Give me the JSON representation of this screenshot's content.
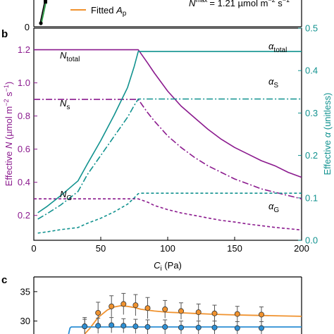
{
  "panel_letters": {
    "b": "b",
    "c": "c"
  },
  "panel_a": {
    "legend_fitted_prefix": "Fitted ",
    "legend_fitted_var": "A",
    "legend_fitted_sub": "p",
    "annotation_var": "N",
    "annotation_sup": "max",
    "annotation_eq": "= 1.21 µmol m",
    "annotation_exp1": "−2",
    "annotation_unit": " s",
    "annotation_exp2": "−1",
    "colors": {
      "fitted": "#f0922e",
      "black": "#000000",
      "green": "#1f9a3a"
    }
  },
  "chart_data": [
    {
      "type": "line",
      "x_label": {
        "var": "C",
        "sub": "i",
        "unit": " (Pa)"
      },
      "xlim": [
        0,
        200
      ],
      "x_ticks": [
        "0",
        "50",
        "100",
        "150",
        "200"
      ],
      "y_left_label": {
        "main": "Effective ",
        "var": "N",
        "unit": " (µmol m",
        "exp1": "−2",
        "mid": " s",
        "exp2": "−1",
        "end": ")"
      },
      "y_left_lim": [
        0.05,
        1.33
      ],
      "y_left_ticks": [
        "0.2",
        "0.4",
        "0.6",
        "0.8",
        "1.0",
        "1.2"
      ],
      "y_right_label": {
        "main": "Effective ",
        "var": "α",
        "unit": " (unitless)"
      },
      "y_right_lim": [
        0.0,
        0.5
      ],
      "y_right_ticks": [
        "0.0",
        "0.1",
        "0.2",
        "0.3",
        "0.4",
        "0.5"
      ],
      "colors": {
        "purple": "#8b1a8e",
        "teal": "#11928f"
      },
      "series": [
        {
          "name": "N_total",
          "axis": "left",
          "style": "solid",
          "color": "#8b1a8e",
          "x": [
            0,
            5,
            10,
            20,
            30,
            40,
            50,
            60,
            70,
            78,
            85,
            90,
            100,
            110,
            120,
            130,
            140,
            150,
            160,
            170,
            180,
            190,
            200
          ],
          "y": [
            1.2,
            1.2,
            1.2,
            1.2,
            1.2,
            1.2,
            1.2,
            1.2,
            1.2,
            1.2,
            1.12,
            1.06,
            0.95,
            0.86,
            0.79,
            0.72,
            0.66,
            0.61,
            0.57,
            0.53,
            0.5,
            0.46,
            0.43
          ]
        },
        {
          "name": "N_s",
          "axis": "left",
          "style": "dashdot",
          "color": "#8b1a8e",
          "x": [
            0,
            5,
            10,
            20,
            30,
            40,
            50,
            60,
            70,
            78,
            85,
            90,
            100,
            110,
            120,
            130,
            140,
            150,
            160,
            170,
            180,
            190,
            200
          ],
          "y": [
            0.9,
            0.9,
            0.9,
            0.9,
            0.9,
            0.9,
            0.9,
            0.9,
            0.9,
            0.9,
            0.82,
            0.77,
            0.68,
            0.61,
            0.55,
            0.5,
            0.46,
            0.42,
            0.39,
            0.36,
            0.34,
            0.32,
            0.3
          ]
        },
        {
          "name": "N_G",
          "axis": "left",
          "style": "dashed",
          "color": "#8b1a8e",
          "x": [
            0,
            5,
            10,
            20,
            30,
            40,
            50,
            60,
            70,
            78,
            85,
            90,
            100,
            110,
            120,
            130,
            140,
            150,
            160,
            170,
            180,
            190,
            200
          ],
          "y": [
            0.3,
            0.3,
            0.3,
            0.3,
            0.3,
            0.3,
            0.3,
            0.3,
            0.3,
            0.3,
            0.28,
            0.26,
            0.235,
            0.215,
            0.2,
            0.185,
            0.17,
            0.16,
            0.148,
            0.138,
            0.128,
            0.12,
            0.112
          ]
        },
        {
          "name": "alpha_total",
          "axis": "right",
          "style": "solid",
          "color": "#11928f",
          "x": [
            3,
            10,
            20,
            33,
            40,
            50,
            60,
            70,
            75,
            78,
            80,
            100,
            150,
            200
          ],
          "y": [
            0.065,
            0.08,
            0.105,
            0.14,
            0.18,
            0.235,
            0.295,
            0.36,
            0.41,
            0.445,
            0.445,
            0.445,
            0.445,
            0.445
          ]
        },
        {
          "name": "alpha_S",
          "axis": "right",
          "style": "dashdot",
          "color": "#11928f",
          "x": [
            3,
            10,
            20,
            33,
            40,
            50,
            60,
            70,
            75,
            78,
            80,
            100,
            150,
            200
          ],
          "y": [
            0.05,
            0.063,
            0.083,
            0.115,
            0.155,
            0.2,
            0.245,
            0.29,
            0.318,
            0.333,
            0.333,
            0.333,
            0.333,
            0.333
          ]
        },
        {
          "name": "alpha_G",
          "axis": "right",
          "style": "dashed",
          "color": "#11928f",
          "x": [
            3,
            10,
            20,
            33,
            40,
            50,
            60,
            70,
            75,
            78,
            80,
            100,
            150,
            200
          ],
          "y": [
            0.017,
            0.02,
            0.025,
            0.03,
            0.04,
            0.052,
            0.067,
            0.085,
            0.1,
            0.11,
            0.111,
            0.111,
            0.111,
            0.111
          ]
        }
      ],
      "labels": {
        "N_total": {
          "var": "N",
          "sub": "total"
        },
        "N_s": {
          "var": "N",
          "sub": "s"
        },
        "N_G": {
          "var": "N",
          "sub": "G"
        },
        "alpha_total": {
          "var": "α",
          "sub": "total"
        },
        "alpha_S": {
          "var": "α",
          "sub": "S"
        },
        "alpha_G": {
          "var": "α",
          "sub": "G"
        }
      }
    },
    {
      "type": "line",
      "y_ticks": [
        "30",
        "35"
      ],
      "ylim": [
        27.8,
        37.5
      ],
      "xlim": [
        0,
        200
      ],
      "colors": {
        "orange": "#f0922e",
        "blue": "#2d8fd4"
      },
      "series": [
        {
          "name": "orange_fit",
          "style": "solid",
          "color": "#f0922e",
          "x": [
            38,
            42,
            48,
            55,
            60,
            65,
            70,
            75,
            80,
            90,
            100,
            110,
            120,
            130,
            140,
            150,
            160,
            170,
            180,
            190,
            200
          ],
          "y": [
            27.8,
            28.8,
            30.6,
            31.9,
            32.4,
            32.6,
            32.5,
            32.3,
            32.0,
            31.7,
            31.5,
            31.4,
            31.3,
            31.2,
            31.1,
            31.05,
            31.0,
            30.95,
            30.9,
            30.85,
            30.8
          ]
        },
        {
          "name": "blue_fit",
          "style": "solid",
          "color": "#2d8fd4",
          "x": [
            26,
            27,
            28,
            40,
            60,
            80,
            100,
            120,
            140,
            160,
            180,
            200
          ],
          "y": [
            27.8,
            28.8,
            29.0,
            29.0,
            29.0,
            29.0,
            29.0,
            29.0,
            29.0,
            29.0,
            29.0,
            29.0
          ]
        },
        {
          "name": "orange_points",
          "style": "points",
          "color": "#f0922e",
          "x": [
            38,
            48,
            58,
            67,
            76,
            85,
            98,
            110,
            123,
            135,
            152,
            170
          ],
          "y": [
            29.1,
            31.4,
            32.5,
            32.9,
            32.7,
            32.2,
            32.0,
            31.7,
            31.5,
            31.3,
            31.2,
            31.1
          ],
          "err": [
            1.5,
            1.8,
            1.8,
            1.8,
            1.8,
            1.8,
            1.5,
            1.4,
            1.4,
            1.4,
            1.3,
            1.3
          ]
        },
        {
          "name": "blue_points",
          "style": "points",
          "color": "#2d8fd4",
          "x": [
            38,
            48,
            58,
            67,
            76,
            85,
            98,
            110,
            123,
            135,
            152,
            170
          ],
          "y": [
            29.1,
            29.2,
            29.3,
            29.2,
            29.1,
            29.0,
            29.0,
            28.9,
            28.9,
            28.9,
            28.8,
            28.8
          ],
          "err": [
            1.2,
            1.3,
            1.3,
            1.2,
            1.2,
            1.2,
            1.2,
            1.1,
            1.1,
            1.1,
            1.1,
            1.1
          ]
        }
      ]
    }
  ]
}
